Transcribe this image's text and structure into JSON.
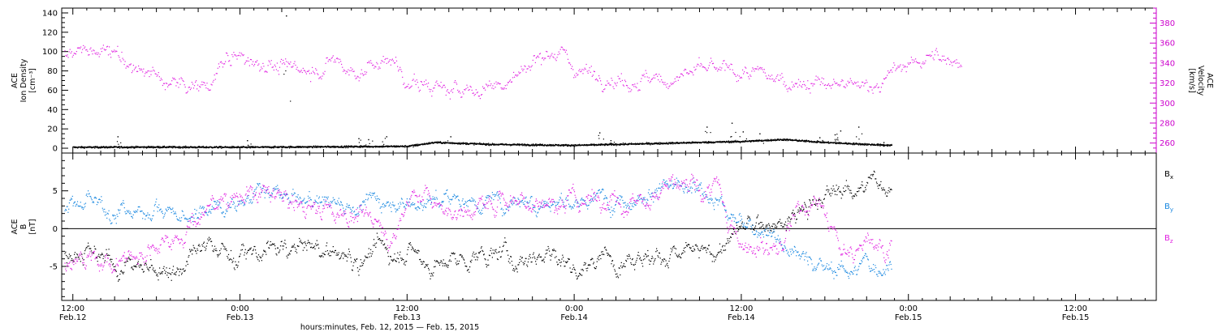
{
  "chart_data": [
    {
      "type": "scatter",
      "panel": "top",
      "ylabel_left": [
        "ACE",
        "Ion Density",
        "[cm⁻³]"
      ],
      "ylabel_right": [
        "ACE",
        "Velocity",
        "[km/s]"
      ],
      "ylim_left": [
        -5,
        145
      ],
      "yticks_left": [
        0,
        20,
        40,
        60,
        80,
        100,
        120,
        140
      ],
      "ylim_right": [
        250,
        395
      ],
      "yticks_right": [
        260,
        280,
        300,
        320,
        340,
        360,
        380
      ],
      "x_hours_range": [
        -1,
        60
      ],
      "series": [
        {
          "name": "",
          "axis": "left",
          "color": "#000000",
          "style": "dots",
          "baseline_points": [
            [
              0,
              1
            ],
            [
              6,
              1.2
            ],
            [
              12,
              1
            ],
            [
              18,
              1.5
            ],
            [
              24,
              2
            ],
            [
              26,
              6
            ],
            [
              30,
              4
            ],
            [
              36,
              3
            ],
            [
              42,
              5
            ],
            [
              48,
              7
            ],
            [
              51,
              9
            ],
            [
              54,
              6
            ],
            [
              57,
              4
            ],
            [
              58.8,
              3
            ]
          ],
          "spikes": [
            [
              3.2,
              12
            ],
            [
              12.5,
              8
            ],
            [
              20.5,
              10
            ],
            [
              21.2,
              9
            ],
            [
              22.5,
              12
            ],
            [
              24.6,
              4
            ],
            [
              27.1,
              12
            ],
            [
              37.8,
              16
            ],
            [
              38.6,
              8
            ],
            [
              45.5,
              22
            ],
            [
              47.3,
              26
            ],
            [
              48.1,
              17
            ],
            [
              49.3,
              15
            ],
            [
              53.6,
              11
            ],
            [
              54.7,
              14
            ],
            [
              55.1,
              18
            ],
            [
              56.4,
              22
            ],
            [
              58.2,
              6
            ],
            [
              15.3,
              137
            ]
          ]
        },
        {
          "name": "",
          "axis": "right",
          "color": "#e020e0",
          "style": "dots",
          "trend_points": [
            [
              -0.6,
              350
            ],
            [
              2,
              352
            ],
            [
              4,
              340
            ],
            [
              6,
              325
            ],
            [
              8,
              318
            ],
            [
              9,
              315
            ],
            [
              10,
              322
            ],
            [
              11,
              345
            ],
            [
              13,
              342
            ],
            [
              15,
              335
            ],
            [
              17,
              332
            ],
            [
              18,
              338
            ],
            [
              19,
              342
            ],
            [
              20,
              330
            ],
            [
              22,
              340
            ],
            [
              23,
              345
            ],
            [
              24,
              320
            ],
            [
              26,
              315
            ],
            [
              28,
              312
            ],
            [
              29,
              312
            ],
            [
              30,
              320
            ],
            [
              31,
              318
            ],
            [
              32,
              328
            ],
            [
              33,
              340
            ],
            [
              34,
              355
            ],
            [
              35,
              350
            ],
            [
              36,
              335
            ],
            [
              38,
              328
            ],
            [
              40,
              322
            ],
            [
              41,
              325
            ],
            [
              42,
              320
            ],
            [
              44,
              330
            ],
            [
              46,
              333
            ],
            [
              48,
              330
            ],
            [
              50,
              325
            ],
            [
              52,
              322
            ],
            [
              54,
              318
            ],
            [
              56,
              315
            ],
            [
              58,
              322
            ],
            [
              59,
              330
            ],
            [
              60,
              340
            ],
            [
              62,
              345
            ],
            [
              63.8,
              342
            ]
          ],
          "amplitude": 10
        }
      ]
    },
    {
      "type": "scatter",
      "panel": "bottom",
      "ylabel": [
        "ACE",
        "B",
        "[nT]"
      ],
      "ylim": [
        -9.5,
        10
      ],
      "yticks": [
        -5,
        0,
        5
      ],
      "zero_line": true,
      "x_hours_range": [
        -1,
        60
      ],
      "series": [
        {
          "name": "Bx",
          "legend": [
            "B",
            "x"
          ],
          "color": "#000000",
          "points": [
            [
              -0.6,
              -3
            ],
            [
              2,
              -4
            ],
            [
              4,
              -5
            ],
            [
              6,
              -5.5
            ],
            [
              8,
              -5
            ],
            [
              10,
              -2
            ],
            [
              12,
              -4
            ],
            [
              14,
              -3
            ],
            [
              16,
              -2.5
            ],
            [
              18,
              -3
            ],
            [
              20,
              -4
            ],
            [
              22,
              -3
            ],
            [
              24,
              -3
            ],
            [
              26,
              -5
            ],
            [
              28,
              -4
            ],
            [
              30,
              -3.5
            ],
            [
              32,
              -4
            ],
            [
              34,
              -3
            ],
            [
              36,
              -5
            ],
            [
              38,
              -4
            ],
            [
              40,
              -3
            ],
            [
              42,
              -4
            ],
            [
              44,
              -3
            ],
            [
              46,
              -3.5
            ],
            [
              47.2,
              -1
            ],
            [
              48,
              0
            ],
            [
              50,
              0.5
            ],
            [
              51,
              0
            ],
            [
              52,
              2
            ],
            [
              54,
              4
            ],
            [
              56,
              6
            ],
            [
              58,
              5.5
            ],
            [
              58.8,
              6
            ]
          ],
          "amplitude": 1.8
        },
        {
          "name": "By",
          "legend": [
            "B",
            "y"
          ],
          "color": "#1a88e0",
          "points": [
            [
              -0.6,
              3
            ],
            [
              2,
              3
            ],
            [
              4,
              2
            ],
            [
              6,
              3
            ],
            [
              8,
              1
            ],
            [
              10,
              3
            ],
            [
              12,
              4
            ],
            [
              14,
              4.5
            ],
            [
              16,
              3.5
            ],
            [
              18,
              4
            ],
            [
              20,
              3
            ],
            [
              22,
              4
            ],
            [
              24,
              3.5
            ],
            [
              26,
              3.5
            ],
            [
              28,
              4
            ],
            [
              30,
              3.5
            ],
            [
              32,
              4
            ],
            [
              34,
              4
            ],
            [
              36,
              3
            ],
            [
              38,
              4
            ],
            [
              40,
              4
            ],
            [
              42,
              5.5
            ],
            [
              44,
              5
            ],
            [
              45.5,
              4.5
            ],
            [
              46.5,
              4
            ],
            [
              47,
              2
            ],
            [
              48,
              0
            ],
            [
              49,
              0.2
            ],
            [
              50,
              0.5
            ],
            [
              51,
              -2
            ],
            [
              52,
              -3
            ],
            [
              53,
              -4.5
            ],
            [
              54,
              -5
            ],
            [
              55,
              -5.5
            ],
            [
              56,
              -5
            ],
            [
              57,
              -5
            ],
            [
              58,
              -5
            ],
            [
              58.8,
              -4.5
            ]
          ],
          "amplitude": 1.6
        },
        {
          "name": "Bz",
          "legend": [
            "B",
            "z"
          ],
          "color": "#e020e0",
          "points": [
            [
              -0.6,
              -4
            ],
            [
              1,
              -4
            ],
            [
              3,
              -4.5
            ],
            [
              5,
              -3
            ],
            [
              6,
              -2
            ],
            [
              8,
              0
            ],
            [
              10,
              3
            ],
            [
              11,
              4.5
            ],
            [
              13,
              4.5
            ],
            [
              15,
              4
            ],
            [
              17,
              3
            ],
            [
              19,
              2
            ],
            [
              21,
              2
            ],
            [
              23,
              -1
            ],
            [
              24,
              4
            ],
            [
              25,
              5
            ],
            [
              27,
              2
            ],
            [
              29,
              3
            ],
            [
              31,
              4
            ],
            [
              33,
              4
            ],
            [
              35,
              3
            ],
            [
              37,
              4
            ],
            [
              39,
              4
            ],
            [
              41,
              4
            ],
            [
              43,
              5
            ],
            [
              45,
              5
            ],
            [
              46.5,
              5
            ],
            [
              47,
              0
            ],
            [
              48,
              -1
            ],
            [
              49,
              -1.5
            ],
            [
              50,
              -2
            ],
            [
              51,
              -2.5
            ],
            [
              52,
              3
            ],
            [
              53,
              4
            ],
            [
              54,
              2
            ],
            [
              55,
              -3
            ],
            [
              56,
              -4
            ],
            [
              57,
              0
            ],
            [
              58,
              -2
            ],
            [
              58.8,
              -1
            ]
          ],
          "amplitude": 1.8
        }
      ]
    }
  ],
  "x_axis": {
    "ticks": [
      {
        "hours": 0,
        "time": "12:00",
        "date": "Feb.12"
      },
      {
        "hours": 12,
        "time": "0:00",
        "date": "Feb.13"
      },
      {
        "hours": 24,
        "time": "12:00",
        "date": "Feb.13"
      },
      {
        "hours": 36,
        "time": "0:00",
        "date": "Feb.14"
      },
      {
        "hours": 48,
        "time": "12:00",
        "date": "Feb.14"
      },
      {
        "hours": 60,
        "time": "0:00",
        "date": "Feb.15"
      },
      {
        "hours": 72,
        "time": "12:00",
        "date": "Feb.15"
      }
    ],
    "xlabel": "hours:minutes, Feb. 12, 2015 — Feb. 15, 2015",
    "range_hours": [
      -0.8,
      77.8
    ]
  },
  "colors": {
    "black": "#000000",
    "magenta": "#e020e0",
    "blue": "#1a88e0",
    "right_axis": "#cc00cc"
  }
}
